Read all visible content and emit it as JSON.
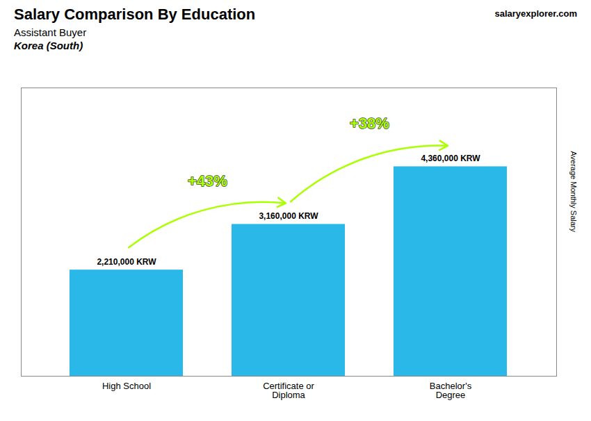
{
  "chart_data": {
    "type": "bar",
    "title": "Salary Comparison By Education",
    "subtitle": [
      "Assistant Buyer",
      "Korea (South)"
    ],
    "ylabel": "Average Monthly Salary",
    "categories": [
      "High School",
      "Certificate or\nDiploma",
      "Bachelor's\nDegree"
    ],
    "values": [
      2210000,
      3160000,
      4360000
    ],
    "value_labels": [
      "2,210,000 KRW",
      "3,160,000 KRW",
      "4,360,000 KRW"
    ],
    "data_labels": true,
    "color": "#29b8e8",
    "ylim": [
      0,
      6000000
    ],
    "grid": false,
    "tick_labels": "x",
    "annotations": [
      {
        "text": "+43%",
        "from": "High School",
        "to": "Certificate or\nDiploma",
        "color": "#aaff00"
      },
      {
        "text": "+38%",
        "from": "Certificate or\nDiploma",
        "to": "Bachelor's\nDegree",
        "color": "#aaff00"
      },
      {
        "text": "salaryexplorer.com"
      }
    ]
  }
}
